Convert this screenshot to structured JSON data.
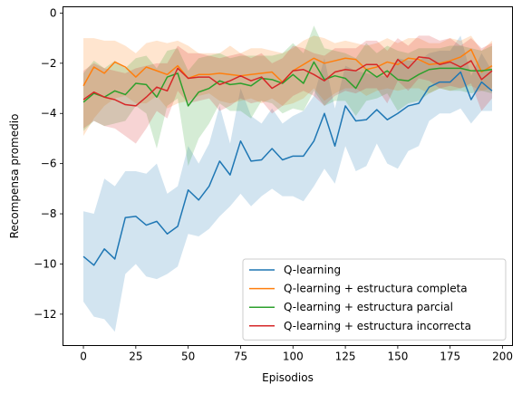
{
  "chart_data": {
    "type": "line",
    "xlabel": "Episodios",
    "ylabel": "Recompensa promedio",
    "xlim": [
      -9.75,
      204.75
    ],
    "ylim": [
      -13.25,
      0.25
    ],
    "xticks": [
      0,
      25,
      50,
      75,
      100,
      125,
      150,
      175,
      200
    ],
    "yticks": [
      0,
      -2,
      -4,
      -6,
      -8,
      -10,
      -12
    ],
    "xtick_labels": [
      "0",
      "25",
      "50",
      "75",
      "100",
      "125",
      "150",
      "175",
      "200"
    ],
    "ytick_labels": [
      "0",
      "−2",
      "−4",
      "−6",
      "−8",
      "−10",
      "−12"
    ],
    "grid": false,
    "legend_position": "lower-right",
    "x": [
      0,
      5,
      10,
      15,
      20,
      25,
      30,
      35,
      40,
      45,
      50,
      55,
      60,
      65,
      70,
      75,
      80,
      85,
      90,
      95,
      100,
      105,
      110,
      115,
      120,
      125,
      130,
      135,
      140,
      145,
      150,
      155,
      160,
      165,
      170,
      175,
      180,
      185,
      190,
      195
    ],
    "series": [
      {
        "name": "Q-learning",
        "color": "#1f77b4",
        "values": [
          -9.7,
          -10.05,
          -9.4,
          -9.8,
          -8.15,
          -8.1,
          -8.45,
          -8.3,
          -8.8,
          -8.5,
          -7.05,
          -7.45,
          -6.9,
          -5.9,
          -6.45,
          -5.1,
          -5.9,
          -5.85,
          -5.4,
          -5.85,
          -5.7,
          -5.7,
          -5.1,
          -4.0,
          -5.3,
          -3.7,
          -4.3,
          -4.25,
          -3.85,
          -4.25,
          -4.0,
          -3.7,
          -3.6,
          -2.95,
          -2.75,
          -2.75,
          -2.35,
          -3.45,
          -2.75,
          -3.1
        ],
        "lower": [
          -11.5,
          -12.1,
          -12.2,
          -12.7,
          -10.4,
          -10.0,
          -10.5,
          -10.6,
          -10.4,
          -10.1,
          -8.8,
          -8.9,
          -8.6,
          -8.1,
          -7.7,
          -7.2,
          -7.7,
          -7.3,
          -7.0,
          -7.3,
          -7.3,
          -7.5,
          -6.9,
          -6.2,
          -6.8,
          -5.3,
          -6.3,
          -6.1,
          -5.2,
          -6.0,
          -6.2,
          -5.5,
          -5.3,
          -4.3,
          -4.0,
          -4.0,
          -3.8,
          -4.4,
          -3.9,
          -3.9
        ],
        "upper": [
          -7.9,
          -8.0,
          -6.6,
          -6.9,
          -6.3,
          -6.3,
          -6.4,
          -6.0,
          -7.2,
          -6.9,
          -5.3,
          -6.0,
          -5.2,
          -3.7,
          -5.2,
          -3.0,
          -4.1,
          -4.4,
          -3.8,
          -4.4,
          -4.1,
          -3.9,
          -3.3,
          -1.8,
          -3.8,
          -2.1,
          -2.3,
          -2.4,
          -2.5,
          -2.5,
          -1.8,
          -1.9,
          -1.9,
          -1.6,
          -1.5,
          -1.5,
          -0.9,
          -2.5,
          -1.6,
          -2.3
        ]
      },
      {
        "name": "Q-learning + estructura completa",
        "color": "#ff7f0e",
        "values": [
          -2.9,
          -2.15,
          -2.4,
          -1.95,
          -2.15,
          -2.55,
          -2.15,
          -2.3,
          -2.45,
          -2.1,
          -2.6,
          -2.45,
          -2.45,
          -2.4,
          -2.45,
          -2.5,
          -2.45,
          -2.4,
          -2.35,
          -2.75,
          -2.3,
          -2.05,
          -1.8,
          -2.0,
          -1.9,
          -1.8,
          -1.85,
          -2.25,
          -2.15,
          -1.95,
          -2.05,
          -1.8,
          -1.85,
          -2.05,
          -2.0,
          -1.9,
          -1.75,
          -1.45,
          -2.35,
          -2.1
        ],
        "lower": [
          -4.9,
          -4.2,
          -3.7,
          -3.4,
          -3.3,
          -3.6,
          -3.6,
          -3.3,
          -3.8,
          -3.6,
          -3.5,
          -3.3,
          -3.2,
          -3.5,
          -3.6,
          -3.5,
          -3.4,
          -3.6,
          -3.4,
          -3.7,
          -3.6,
          -3.4,
          -3.0,
          -3.5,
          -3.2,
          -3.0,
          -3.0,
          -3.3,
          -3.1,
          -3.0,
          -3.1,
          -3.0,
          -3.0,
          -3.2,
          -3.0,
          -3.1,
          -3.0,
          -2.9,
          -3.1,
          -3.0
        ],
        "upper": [
          -1.0,
          -1.0,
          -1.1,
          -1.1,
          -1.3,
          -1.6,
          -1.2,
          -1.1,
          -1.2,
          -1.1,
          -1.3,
          -1.6,
          -1.6,
          -1.6,
          -1.3,
          -1.6,
          -1.4,
          -1.4,
          -1.5,
          -1.6,
          -1.4,
          -1.1,
          -0.9,
          -1.0,
          -1.2,
          -1.1,
          -1.2,
          -1.3,
          -1.2,
          -1.0,
          -1.2,
          -1.0,
          -1.0,
          -1.2,
          -1.2,
          -1.0,
          -1.1,
          -0.9,
          -1.5,
          -1.1
        ]
      },
      {
        "name": "Q-learning + estructura parcial",
        "color": "#2ca02c",
        "values": [
          -3.55,
          -3.2,
          -3.35,
          -3.1,
          -3.25,
          -2.8,
          -2.85,
          -3.35,
          -2.55,
          -2.4,
          -3.7,
          -3.15,
          -3.0,
          -2.7,
          -2.85,
          -2.8,
          -2.9,
          -2.6,
          -2.65,
          -2.8,
          -2.45,
          -2.8,
          -1.95,
          -2.65,
          -2.5,
          -2.6,
          -3.0,
          -2.25,
          -2.55,
          -2.3,
          -2.65,
          -2.7,
          -2.45,
          -2.25,
          -2.2,
          -2.2,
          -2.2,
          -2.3,
          -2.3,
          -2.25
        ],
        "lower": [
          -4.7,
          -4.3,
          -4.5,
          -4.4,
          -4.3,
          -3.7,
          -4.0,
          -5.4,
          -3.7,
          -3.4,
          -6.1,
          -5.0,
          -4.4,
          -3.6,
          -3.9,
          -3.9,
          -4.2,
          -3.5,
          -3.6,
          -4.0,
          -3.8,
          -3.9,
          -3.1,
          -3.7,
          -3.5,
          -3.5,
          -4.1,
          -3.5,
          -3.4,
          -3.2,
          -3.9,
          -3.6,
          -3.5,
          -3.2,
          -3.0,
          -3.1,
          -3.1,
          -3.2,
          -3.1,
          -3.2
        ],
        "upper": [
          -2.4,
          -1.9,
          -2.2,
          -1.9,
          -2.2,
          -1.8,
          -1.7,
          -2.2,
          -1.5,
          -1.4,
          -2.3,
          -1.8,
          -1.7,
          -1.6,
          -1.8,
          -1.7,
          -1.7,
          -1.7,
          -1.7,
          -1.6,
          -1.2,
          -1.6,
          -0.5,
          -1.4,
          -1.5,
          -1.6,
          -1.8,
          -1.2,
          -1.6,
          -1.3,
          -1.5,
          -1.6,
          -1.4,
          -1.4,
          -1.4,
          -1.3,
          -1.3,
          -1.4,
          -1.5,
          -1.3
        ]
      },
      {
        "name": "Q-learning + estructura incorrecta",
        "color": "#d62728",
        "values": [
          -3.45,
          -3.15,
          -3.35,
          -3.45,
          -3.65,
          -3.7,
          -3.35,
          -2.95,
          -3.1,
          -2.2,
          -2.6,
          -2.55,
          -2.55,
          -2.85,
          -2.7,
          -2.5,
          -2.7,
          -2.55,
          -3.0,
          -2.75,
          -2.3,
          -2.25,
          -2.45,
          -2.7,
          -2.35,
          -2.25,
          -2.3,
          -2.05,
          -2.05,
          -2.55,
          -1.85,
          -2.2,
          -1.75,
          -1.8,
          -2.05,
          -1.95,
          -2.15,
          -1.9,
          -2.65,
          -2.3
        ],
        "lower": [
          -4.6,
          -4.3,
          -4.5,
          -4.6,
          -4.9,
          -5.2,
          -4.6,
          -3.9,
          -4.2,
          -3.1,
          -3.6,
          -3.5,
          -3.4,
          -3.9,
          -3.7,
          -3.4,
          -3.6,
          -3.5,
          -4.0,
          -3.7,
          -3.3,
          -3.1,
          -3.3,
          -3.7,
          -3.3,
          -3.1,
          -3.2,
          -3.0,
          -3.0,
          -3.6,
          -2.7,
          -3.1,
          -2.6,
          -2.7,
          -3.0,
          -2.9,
          -3.0,
          -2.8,
          -3.9,
          -3.4
        ],
        "upper": [
          -2.3,
          -2.0,
          -2.2,
          -2.3,
          -2.4,
          -2.2,
          -2.1,
          -2.0,
          -2.0,
          -1.3,
          -1.6,
          -1.6,
          -1.7,
          -1.8,
          -1.7,
          -1.6,
          -1.8,
          -1.6,
          -2.0,
          -1.8,
          -1.3,
          -1.4,
          -1.6,
          -1.7,
          -1.4,
          -1.4,
          -1.4,
          -1.1,
          -1.1,
          -1.5,
          -1.0,
          -1.3,
          -0.9,
          -0.9,
          -1.1,
          -1.0,
          -1.3,
          -1.0,
          -1.4,
          -1.2
        ]
      }
    ]
  }
}
